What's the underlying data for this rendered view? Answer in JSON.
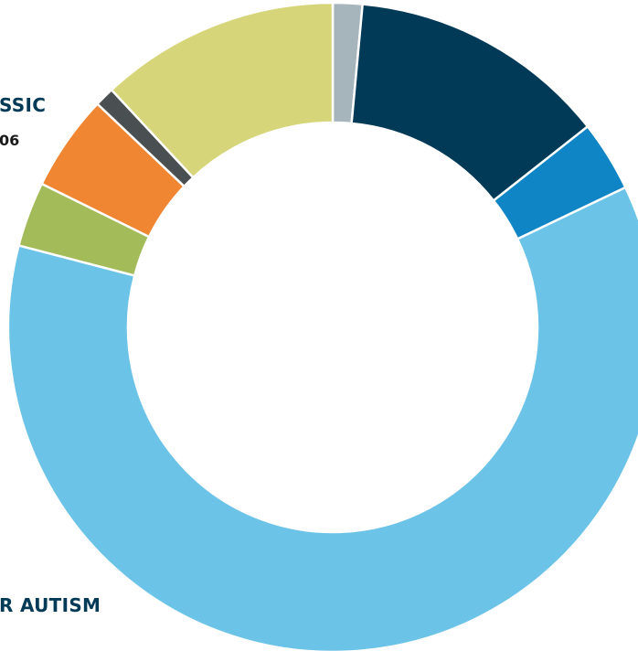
{
  "chart_data": {
    "type": "donut",
    "categories": [
      "",
      "",
      "",
      "",
      "",
      "",
      "",
      ""
    ],
    "values": [
      1.5,
      13.2,
      3.6,
      62.5,
      3.3,
      4.9,
      1.0,
      12.2
    ],
    "colors": [
      "#a5b5bb",
      "#003a57",
      "#1085c6",
      "#6cc3e8",
      "#a3bb59",
      "#f08532",
      "#4a4f52",
      "#d7d579"
    ],
    "visible_labels": [
      {
        "title": "SSIC",
        "subtitle": "06"
      },
      {
        "title": "R AUTISM",
        "subtitle": ""
      }
    ],
    "title": "",
    "legend": "none"
  }
}
